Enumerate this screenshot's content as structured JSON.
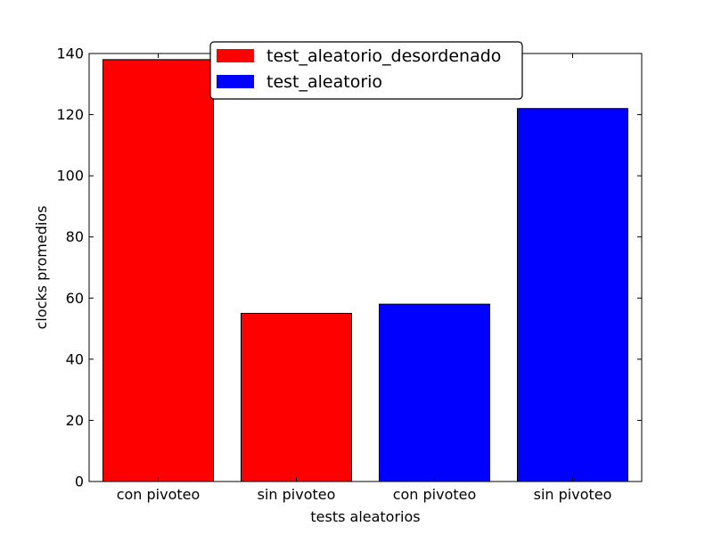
{
  "chart_data": {
    "type": "bar",
    "categories": [
      "con pivoteo",
      "sin pivoteo",
      "con pivoteo",
      "sin pivoteo"
    ],
    "series": [
      {
        "name": "test_aleatorio_desordenado",
        "color": "#ff0000",
        "values": [
          138,
          55,
          null,
          null
        ]
      },
      {
        "name": "test_aleatorio",
        "color": "#0000ff",
        "values": [
          null,
          null,
          58,
          122
        ]
      }
    ],
    "xlabel": "tests aleatorios",
    "ylabel": "clocks promedios",
    "ylim": [
      0,
      140
    ],
    "yticks": [
      0,
      20,
      40,
      60,
      80,
      100,
      120,
      140
    ],
    "grid": false,
    "legend_position": "top-center"
  }
}
